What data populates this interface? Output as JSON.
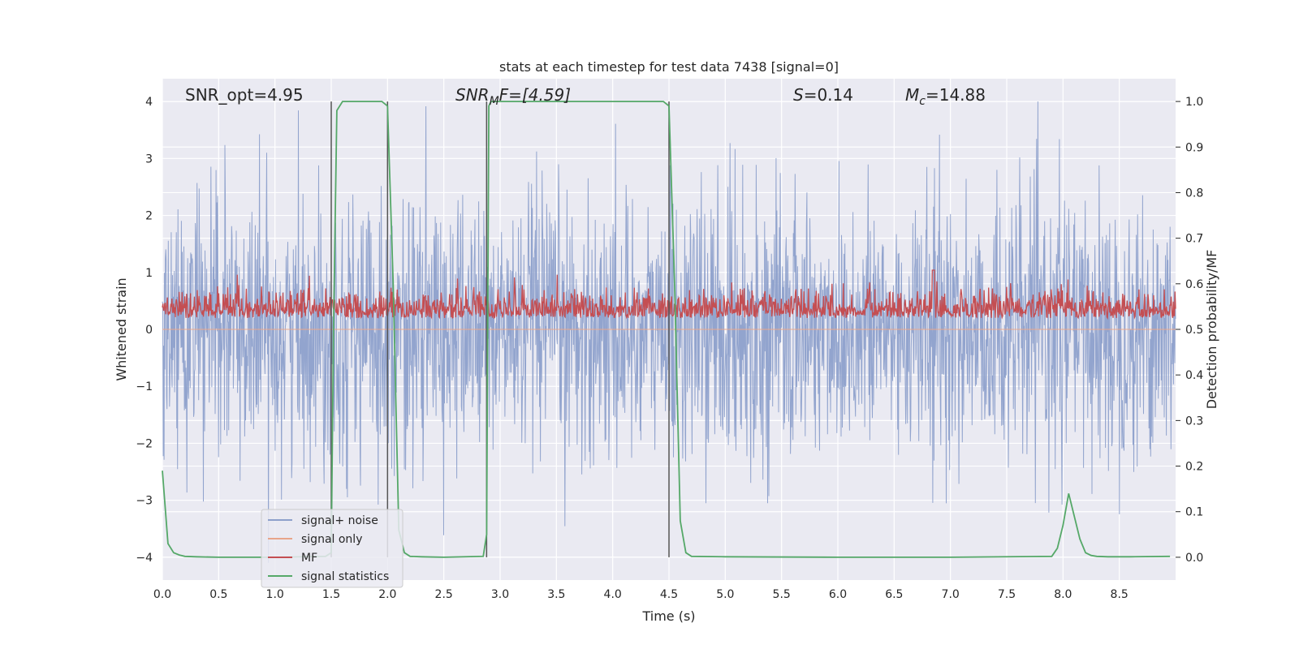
{
  "chart_data": {
    "type": "line",
    "title": "stats at each timestep for test data 7438 [signal=0]",
    "xlabel": "Time (s)",
    "ylabel": "Whitened strain",
    "ylabel_right": "Detection probability/MF",
    "xlim": [
      0.0,
      9.0
    ],
    "ylim": [
      -4.4,
      4.4
    ],
    "ylim_right": [
      -0.05,
      1.05
    ],
    "x_ticks": [
      "0.0",
      "0.5",
      "1.0",
      "1.5",
      "2.0",
      "2.5",
      "3.0",
      "3.5",
      "4.0",
      "4.5",
      "5.0",
      "5.5",
      "6.0",
      "6.5",
      "7.0",
      "7.5",
      "8.0",
      "8.5"
    ],
    "y_ticks": [
      "4",
      "3",
      "2",
      "1",
      "0",
      "−1",
      "−2",
      "−3",
      "−4"
    ],
    "y_ticks_right": [
      "1.0",
      "0.9",
      "0.8",
      "0.7",
      "0.6",
      "0.5",
      "0.4",
      "0.3",
      "0.2",
      "0.1",
      "0.0"
    ],
    "annotations": {
      "snr_opt": "SNR_opt=4.95",
      "snr_mf_base": "SNR",
      "snr_mf_sub": "M",
      "snr_mf_rest": "F=[4.59]",
      "s_var": "S",
      "s_val": "=0.14",
      "mc_var": "M",
      "mc_sub": "c",
      "mc_val": "=14.88"
    },
    "vertical_markers": [
      1.5,
      2.0,
      2.88,
      4.5
    ],
    "series": [
      {
        "name": "signal+ noise",
        "color": "#8da0cb",
        "description": "whitened strain, unit-variance noise, roughly in [-4, 4]"
      },
      {
        "name": "signal only",
        "color": "#e8a58a",
        "description": "no signal present (flat at 0)"
      },
      {
        "name": "MF",
        "color": "#c44e52",
        "description": "matched filter output on right axis, ~0.5-0.62, spike near t=6.85"
      },
      {
        "name": "signal statistics",
        "color": "#55a868",
        "axis": "right",
        "x": [
          0.0,
          0.05,
          0.1,
          0.15,
          0.2,
          0.3,
          0.5,
          1.0,
          1.45,
          1.5,
          1.52,
          1.55,
          1.6,
          1.65,
          1.7,
          1.8,
          1.95,
          2.0,
          2.05,
          2.1,
          2.15,
          2.2,
          2.3,
          2.5,
          2.85,
          2.88,
          2.9,
          2.92,
          2.95,
          3.0,
          3.5,
          4.0,
          4.45,
          4.5,
          4.55,
          4.6,
          4.65,
          4.7,
          5.0,
          6.0,
          7.0,
          7.9,
          7.95,
          8.0,
          8.05,
          8.1,
          8.15,
          8.2,
          8.25,
          8.3,
          8.4,
          8.6,
          8.95
        ],
        "values": [
          0.19,
          0.03,
          0.01,
          0.005,
          0.002,
          0.001,
          0.0,
          0.0,
          0.002,
          0.01,
          0.5,
          0.98,
          1.0,
          1.0,
          1.0,
          1.0,
          1.0,
          0.99,
          0.6,
          0.06,
          0.01,
          0.002,
          0.001,
          0.0,
          0.002,
          0.05,
          0.99,
          1.0,
          1.0,
          1.0,
          1.0,
          1.0,
          1.0,
          0.99,
          0.6,
          0.08,
          0.01,
          0.002,
          0.001,
          0.0,
          0.0,
          0.002,
          0.02,
          0.07,
          0.14,
          0.09,
          0.04,
          0.01,
          0.004,
          0.002,
          0.001,
          0.001,
          0.002
        ]
      }
    ],
    "legend": {
      "placement": "lower-left",
      "entries": [
        "signal+ noise",
        "signal only",
        "MF",
        "signal statistics"
      ]
    }
  }
}
